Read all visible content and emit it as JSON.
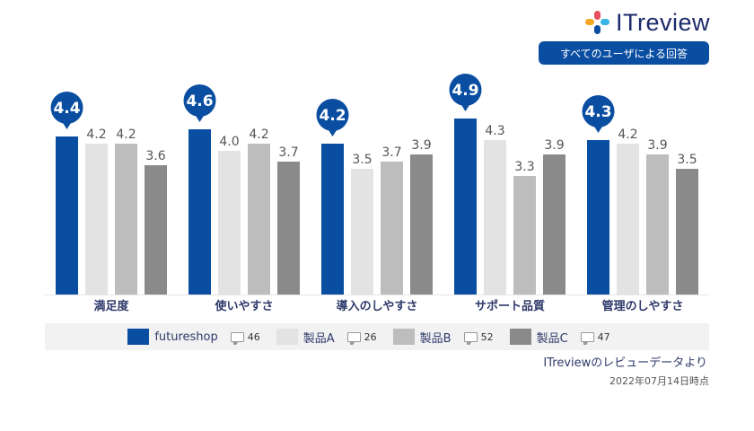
{
  "brand": {
    "logo_text": "ITreview",
    "logo_colors": [
      "#e8505b",
      "#3ab5e6",
      "#f5a623",
      "#0a4ea2"
    ]
  },
  "respondents_label": "すべてのユーザによる回答",
  "source": "ITreviewのレビューデータより",
  "date": "2022年07月14日時点",
  "legend": [
    {
      "name": "futureshop",
      "count": "46",
      "color": "#0a4ea2"
    },
    {
      "name": "製品A",
      "count": "26",
      "color": "#e3e3e3"
    },
    {
      "name": "製品B",
      "count": "52",
      "color": "#bdbdbd"
    },
    {
      "name": "製品C",
      "count": "47",
      "color": "#8a8a8a"
    }
  ],
  "chart_data": {
    "type": "bar",
    "categories": [
      "満足度",
      "使いやすさ",
      "導入のしやすさ",
      "サポート品質",
      "管理のしやすさ"
    ],
    "series": [
      {
        "name": "futureshop",
        "values": [
          4.4,
          4.6,
          4.2,
          4.9,
          4.3
        ],
        "color": "#0a4ea2"
      },
      {
        "name": "製品A",
        "values": [
          4.2,
          4.0,
          3.5,
          4.3,
          4.2
        ],
        "color": "#e3e3e3"
      },
      {
        "name": "製品B",
        "values": [
          4.2,
          4.2,
          3.7,
          3.3,
          3.9
        ],
        "color": "#bdbdbd"
      },
      {
        "name": "製品C",
        "values": [
          3.6,
          3.7,
          3.9,
          3.9,
          3.5
        ],
        "color": "#8a8a8a"
      }
    ],
    "ylim": [
      0,
      5
    ],
    "grid": false,
    "legend": "bottom"
  }
}
